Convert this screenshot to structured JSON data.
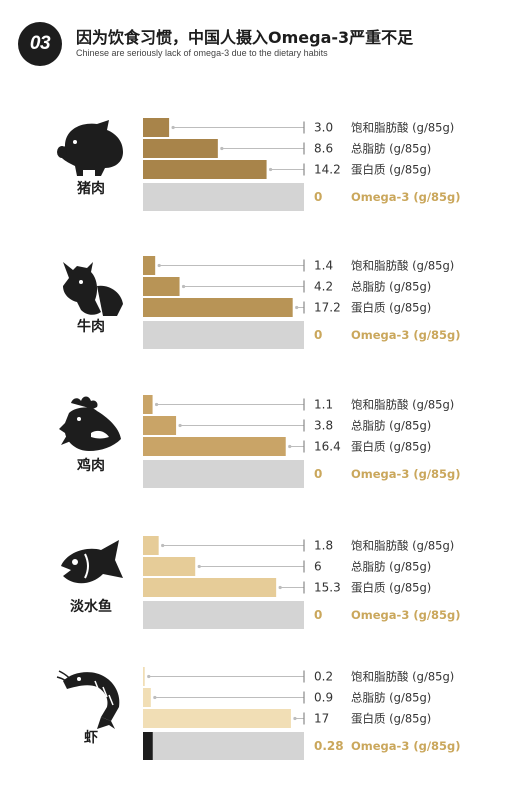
{
  "header": {
    "badge": "03",
    "title": "因为饮食习惯，中国人摄入Omega-3严重不足",
    "subtitle": "Chinese are seriously lack of omega-3 due to the dietary habits"
  },
  "colors": {
    "pork_bar": "#a8844a",
    "beef_bar": "#b89456",
    "chicken_bar": "#c9a467",
    "fish_bar": "#e6cc98",
    "shrimp_bar": "#f1deb5",
    "omega_bg": "#d4d4d4",
    "omega_text": "#caa75c",
    "omega_fill": "#1d1d1d",
    "leader": "#bdbdbd"
  },
  "chart_data": {
    "type": "bar",
    "orientation": "horizontal",
    "xlim": [
      0,
      18.5
    ],
    "nutrients": [
      "饱和脂肪酸 (g/85g)",
      "总脂肪 (g/85g)",
      "蛋白质 (g/85g)",
      "Omega-3 (g/85g)"
    ],
    "groups": [
      {
        "name": "猪肉",
        "icon": "pig-icon",
        "values": [
          3.0,
          8.6,
          14.2,
          0
        ],
        "labels": [
          "3.0",
          "8.6",
          "14.2",
          "0"
        ]
      },
      {
        "name": "牛肉",
        "icon": "cow-icon",
        "values": [
          1.4,
          4.2,
          17.2,
          0
        ],
        "labels": [
          "1.4",
          "4.2",
          "17.2",
          "0"
        ]
      },
      {
        "name": "鸡肉",
        "icon": "chicken-icon",
        "values": [
          1.1,
          3.8,
          16.4,
          0
        ],
        "labels": [
          "1.1",
          "3.8",
          "16.4",
          "0"
        ]
      },
      {
        "name": "淡水鱼",
        "icon": "fish-icon",
        "values": [
          1.8,
          6,
          15.3,
          0
        ],
        "labels": [
          "1.8",
          "6",
          "15.3",
          "0"
        ]
      },
      {
        "name": "虾",
        "icon": "shrimp-icon",
        "values": [
          0.2,
          0.9,
          17,
          0.28
        ],
        "labels": [
          "0.2",
          "0.9",
          "17",
          "0.28"
        ]
      }
    ]
  }
}
